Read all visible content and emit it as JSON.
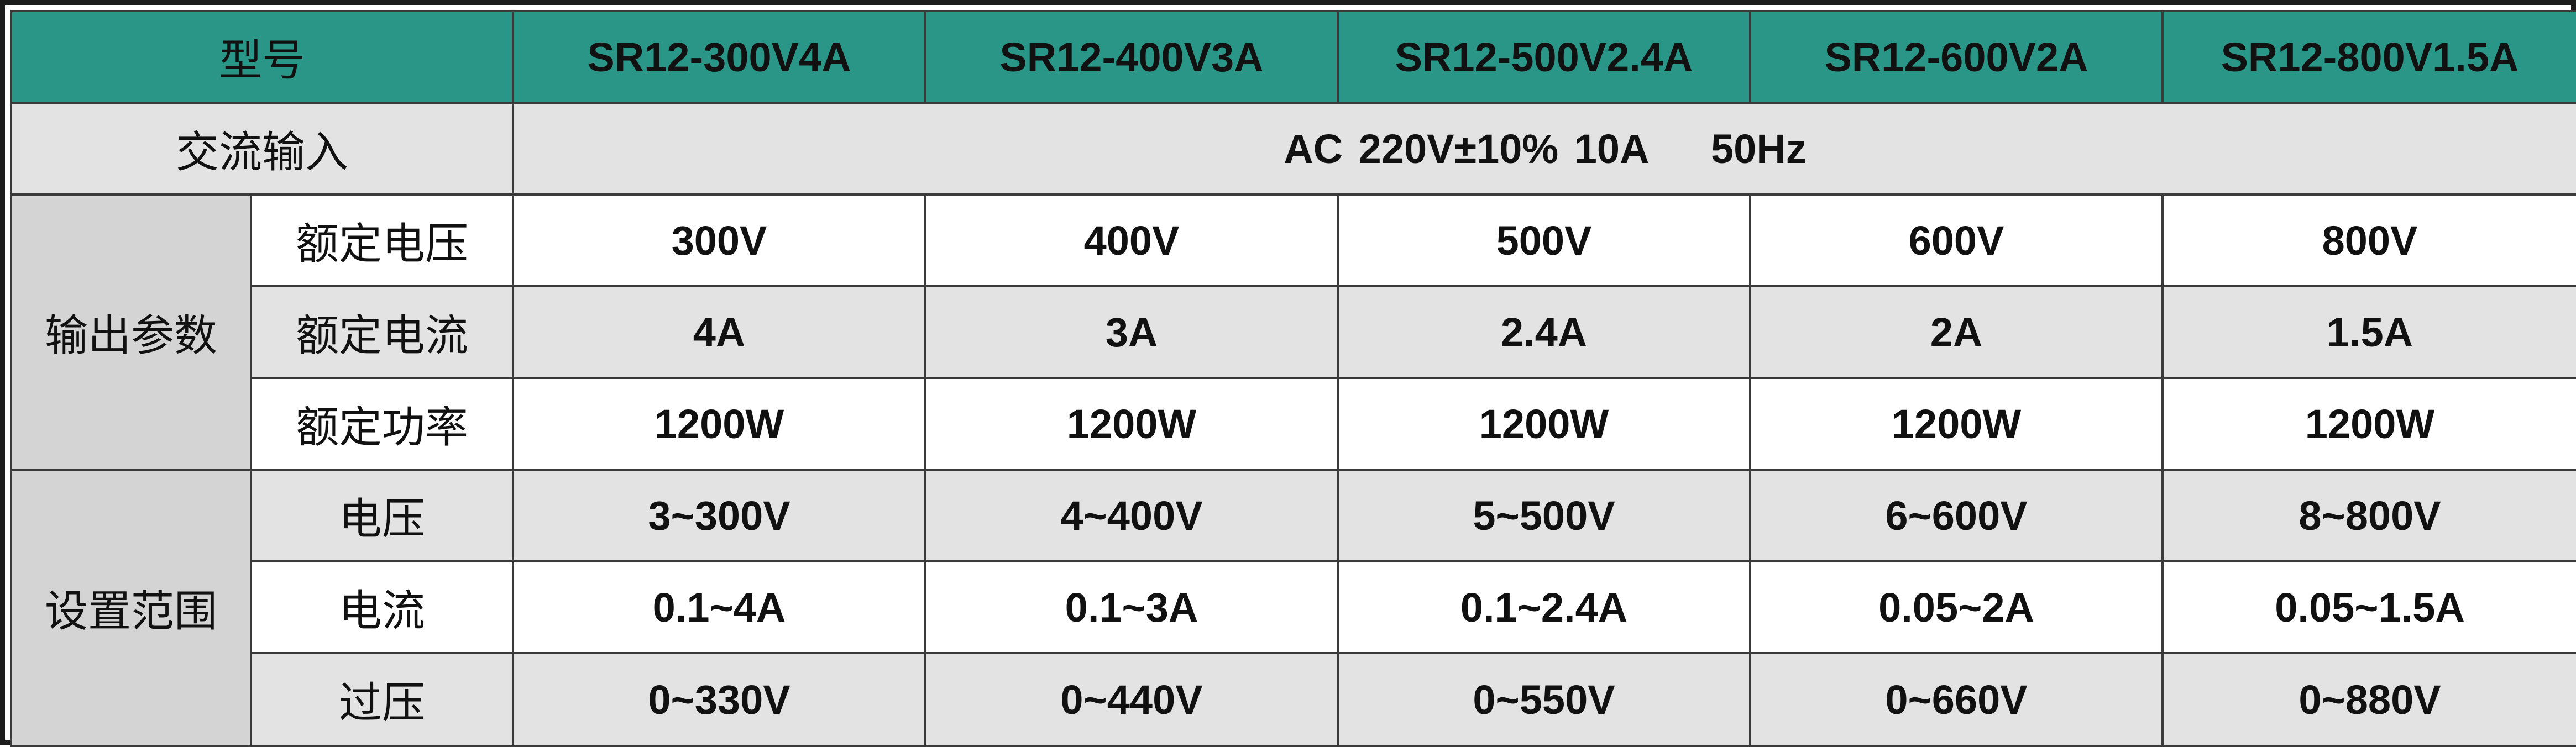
{
  "header": {
    "model_label": "型号",
    "models": [
      "SR12-300V4A",
      "SR12-400V3A",
      "SR12-500V2.4A",
      "SR12-600V2A",
      "SR12-800V1.5A"
    ]
  },
  "ac_input": {
    "label": "交流输入",
    "value": "AC 220V±10% 10A    50Hz"
  },
  "output_params": {
    "group_label": "输出参数",
    "rows": [
      {
        "label": "额定电压",
        "values": [
          "300V",
          "400V",
          "500V",
          "600V",
          "800V"
        ]
      },
      {
        "label": "额定电流",
        "values": [
          "4A",
          "3A",
          "2.4A",
          "2A",
          "1.5A"
        ]
      },
      {
        "label": "额定功率",
        "values": [
          "1200W",
          "1200W",
          "1200W",
          "1200W",
          "1200W"
        ]
      }
    ]
  },
  "setting_range": {
    "group_label": "设置范围",
    "rows": [
      {
        "label": "电压",
        "values": [
          "3~300V",
          "4~400V",
          "5~500V",
          "6~600V",
          "8~800V"
        ]
      },
      {
        "label": "电流",
        "values": [
          "0.1~4A",
          "0.1~3A",
          "0.1~2.4A",
          "0.05~2A",
          "0.05~1.5A"
        ]
      },
      {
        "label": "过压",
        "values": [
          "0~330V",
          "0~440V",
          "0~550V",
          "0~660V",
          "0~880V"
        ]
      }
    ]
  },
  "colors": {
    "header_bg": "#2a9688",
    "alt_row_bg": "#e3e3e3",
    "group_bg": "#d4d4d4",
    "border": "#3a3a3a"
  }
}
